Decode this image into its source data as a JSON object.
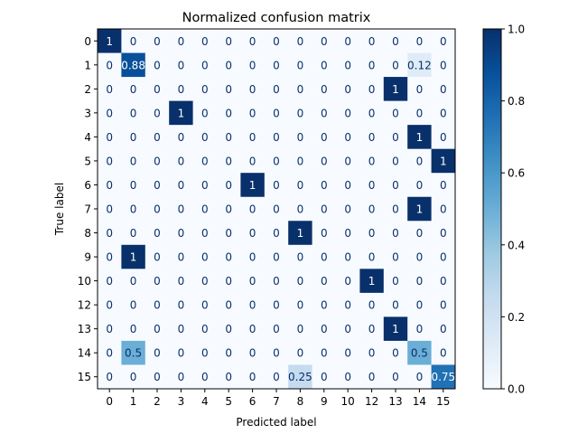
{
  "chart_data": {
    "type": "heatmap",
    "title": "Normalized confusion matrix",
    "xlabel": "Predicted label",
    "ylabel": "True label",
    "x_tick_labels": [
      "0",
      "1",
      "2",
      "3",
      "4",
      "5",
      "6",
      "7",
      "8",
      "9",
      "10",
      "12",
      "13",
      "14",
      "15"
    ],
    "y_tick_labels": [
      "0",
      "1",
      "2",
      "3",
      "4",
      "5",
      "6",
      "7",
      "8",
      "9",
      "10",
      "12",
      "13",
      "14",
      "15"
    ],
    "cell_labels": [
      [
        "1",
        "0",
        "0",
        "0",
        "0",
        "0",
        "0",
        "0",
        "0",
        "0",
        "0",
        "0",
        "0",
        "0",
        "0"
      ],
      [
        "0",
        "0.88",
        "0",
        "0",
        "0",
        "0",
        "0",
        "0",
        "0",
        "0",
        "0",
        "0",
        "0",
        "0.12",
        "0"
      ],
      [
        "0",
        "0",
        "0",
        "0",
        "0",
        "0",
        "0",
        "0",
        "0",
        "0",
        "0",
        "0",
        "1",
        "0",
        "0"
      ],
      [
        "0",
        "0",
        "0",
        "1",
        "0",
        "0",
        "0",
        "0",
        "0",
        "0",
        "0",
        "0",
        "0",
        "0",
        "0"
      ],
      [
        "0",
        "0",
        "0",
        "0",
        "0",
        "0",
        "0",
        "0",
        "0",
        "0",
        "0",
        "0",
        "0",
        "1",
        "0"
      ],
      [
        "0",
        "0",
        "0",
        "0",
        "0",
        "0",
        "0",
        "0",
        "0",
        "0",
        "0",
        "0",
        "0",
        "0",
        "1"
      ],
      [
        "0",
        "0",
        "0",
        "0",
        "0",
        "0",
        "1",
        "0",
        "0",
        "0",
        "0",
        "0",
        "0",
        "0",
        "0"
      ],
      [
        "0",
        "0",
        "0",
        "0",
        "0",
        "0",
        "0",
        "0",
        "0",
        "0",
        "0",
        "0",
        "0",
        "1",
        "0"
      ],
      [
        "0",
        "0",
        "0",
        "0",
        "0",
        "0",
        "0",
        "0",
        "1",
        "0",
        "0",
        "0",
        "0",
        "0",
        "0"
      ],
      [
        "0",
        "1",
        "0",
        "0",
        "0",
        "0",
        "0",
        "0",
        "0",
        "0",
        "0",
        "0",
        "0",
        "0",
        "0"
      ],
      [
        "0",
        "0",
        "0",
        "0",
        "0",
        "0",
        "0",
        "0",
        "0",
        "0",
        "0",
        "1",
        "0",
        "0",
        "0"
      ],
      [
        "0",
        "0",
        "0",
        "0",
        "0",
        "0",
        "0",
        "0",
        "0",
        "0",
        "0",
        "0",
        "0",
        "0",
        "0"
      ],
      [
        "0",
        "0",
        "0",
        "0",
        "0",
        "0",
        "0",
        "0",
        "0",
        "0",
        "0",
        "0",
        "1",
        "0",
        "0"
      ],
      [
        "0",
        "0.5",
        "0",
        "0",
        "0",
        "0",
        "0",
        "0",
        "0",
        "0",
        "0",
        "0",
        "0",
        "0.5",
        "0"
      ],
      [
        "0",
        "0",
        "0",
        "0",
        "0",
        "0",
        "0",
        "0",
        "0.25",
        "0",
        "0",
        "0",
        "0",
        "0",
        "0.75"
      ]
    ],
    "colormap": "Blues",
    "colorbar": {
      "range": [
        0.0,
        1.0
      ],
      "tick_values": [
        0.0,
        0.2,
        0.4,
        0.6,
        0.8,
        1.0
      ],
      "tick_labels": [
        "0.0",
        "0.2",
        "0.4",
        "0.6",
        "0.8",
        "1.0"
      ]
    },
    "grid": false,
    "legend": "colorbar-right"
  }
}
